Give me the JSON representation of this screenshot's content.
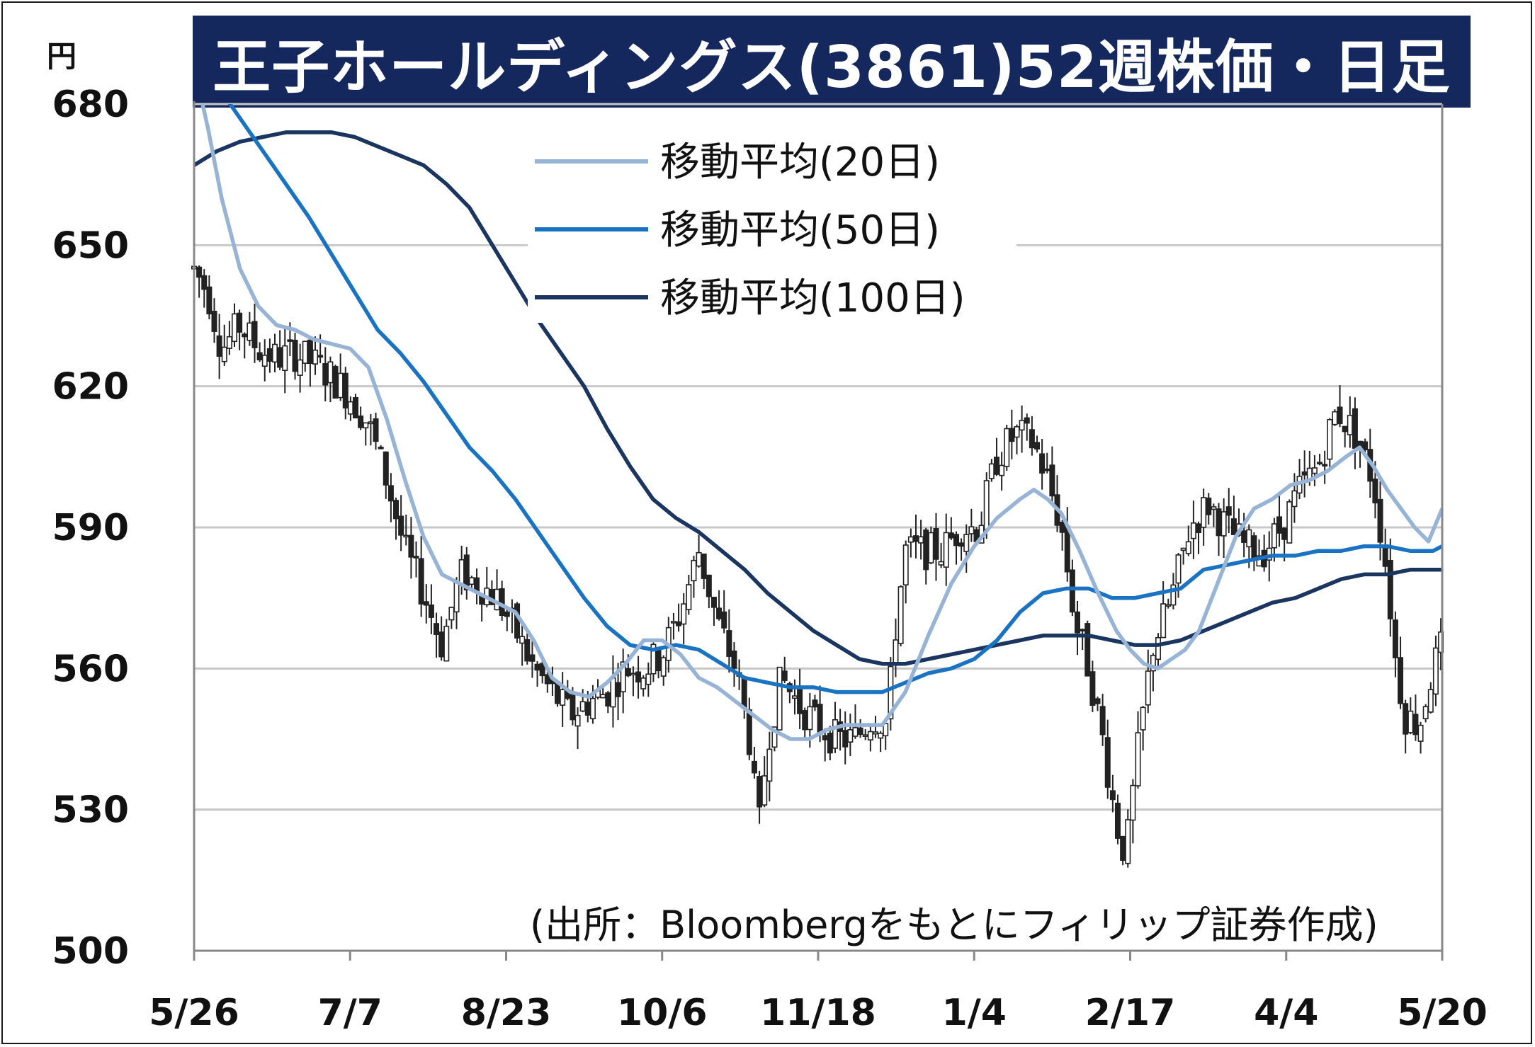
{
  "chart_data": {
    "type": "candlestick",
    "title": "王子ホールディングス(3861)52週株価・日足",
    "ylabel": "円",
    "source": "(出所：Bloombergをもとにフィリップ証券作成)",
    "ylim": [
      500,
      680
    ],
    "yticks": [
      "680",
      "650",
      "620",
      "590",
      "560",
      "530",
      "500"
    ],
    "grid": "horizontal",
    "legend_position": "top-center",
    "x_tick_labels": [
      "5/26",
      "7/7",
      "8/23",
      "10/6",
      "11/18",
      "1/4",
      "2/17",
      "4/4",
      "5/20"
    ],
    "colors": {
      "ma20": "#97b3d6",
      "ma50": "#1a73c2",
      "ma100": "#1a3560",
      "title_bg": "#15285e",
      "grid": "#c8c8c8"
    },
    "legend": [
      "移動平均(20日)",
      "移動平均(50日)",
      "移動平均(100日)"
    ],
    "price_path": [
      [
        0,
        645
      ],
      [
        6,
        640
      ],
      [
        12,
        628
      ],
      [
        20,
        633
      ],
      [
        28,
        628
      ],
      [
        36,
        626
      ],
      [
        44,
        627
      ],
      [
        52,
        625
      ],
      [
        60,
        622
      ],
      [
        68,
        618
      ],
      [
        76,
        612
      ],
      [
        84,
        600
      ],
      [
        92,
        585
      ],
      [
        100,
        576
      ],
      [
        108,
        565
      ],
      [
        116,
        580
      ],
      [
        124,
        578
      ],
      [
        132,
        575
      ],
      [
        140,
        568
      ],
      [
        148,
        560
      ],
      [
        156,
        555
      ],
      [
        164,
        550
      ],
      [
        172,
        553
      ],
      [
        180,
        555
      ],
      [
        188,
        560
      ],
      [
        196,
        560
      ],
      [
        204,
        563
      ],
      [
        212,
        572
      ],
      [
        220,
        585
      ],
      [
        228,
        570
      ],
      [
        236,
        560
      ],
      [
        242,
        545
      ],
      [
        246,
        525
      ],
      [
        250,
        545
      ],
      [
        256,
        558
      ],
      [
        264,
        552
      ],
      [
        272,
        548
      ],
      [
        280,
        545
      ],
      [
        288,
        545
      ],
      [
        296,
        550
      ],
      [
        302,
        548
      ],
      [
        306,
        570
      ],
      [
        310,
        585
      ],
      [
        318,
        585
      ],
      [
        326,
        585
      ],
      [
        334,
        590
      ],
      [
        342,
        590
      ],
      [
        350,
        605
      ],
      [
        358,
        610
      ],
      [
        366,
        608
      ],
      [
        372,
        600
      ],
      [
        378,
        590
      ],
      [
        384,
        570
      ],
      [
        390,
        560
      ],
      [
        396,
        545
      ],
      [
        402,
        527
      ],
      [
        406,
        520
      ],
      [
        412,
        545
      ],
      [
        418,
        565
      ],
      [
        426,
        575
      ],
      [
        434,
        590
      ],
      [
        442,
        595
      ],
      [
        450,
        590
      ],
      [
        458,
        586
      ],
      [
        466,
        585
      ],
      [
        474,
        590
      ],
      [
        482,
        598
      ],
      [
        490,
        603
      ],
      [
        498,
        615
      ],
      [
        506,
        610
      ],
      [
        514,
        600
      ],
      [
        520,
        580
      ],
      [
        524,
        560
      ],
      [
        528,
        550
      ],
      [
        534,
        548
      ],
      [
        540,
        560
      ],
      [
        544,
        565
      ]
    ],
    "ma20": [
      [
        0,
        688
      ],
      [
        6,
        675
      ],
      [
        12,
        660
      ],
      [
        20,
        645
      ],
      [
        28,
        637
      ],
      [
        36,
        633
      ],
      [
        44,
        632
      ],
      [
        52,
        630
      ],
      [
        60,
        629
      ],
      [
        68,
        628
      ],
      [
        76,
        624
      ],
      [
        84,
        613
      ],
      [
        92,
        600
      ],
      [
        100,
        588
      ],
      [
        108,
        580
      ],
      [
        116,
        578
      ],
      [
        124,
        576
      ],
      [
        132,
        574
      ],
      [
        140,
        572
      ],
      [
        148,
        566
      ],
      [
        156,
        558
      ],
      [
        164,
        555
      ],
      [
        172,
        554
      ],
      [
        180,
        557
      ],
      [
        188,
        561
      ],
      [
        196,
        566
      ],
      [
        204,
        566
      ],
      [
        212,
        563
      ],
      [
        220,
        558
      ],
      [
        228,
        556
      ],
      [
        236,
        553
      ],
      [
        244,
        550
      ],
      [
        252,
        547
      ],
      [
        260,
        545
      ],
      [
        268,
        545
      ],
      [
        276,
        547
      ],
      [
        284,
        548
      ],
      [
        292,
        548
      ],
      [
        300,
        548
      ],
      [
        310,
        555
      ],
      [
        320,
        567
      ],
      [
        330,
        578
      ],
      [
        340,
        586
      ],
      [
        350,
        592
      ],
      [
        360,
        596
      ],
      [
        366,
        598
      ],
      [
        372,
        596
      ],
      [
        378,
        593
      ],
      [
        386,
        585
      ],
      [
        394,
        576
      ],
      [
        402,
        568
      ],
      [
        408,
        564
      ],
      [
        414,
        561
      ],
      [
        420,
        560
      ],
      [
        426,
        562
      ],
      [
        432,
        564
      ],
      [
        438,
        568
      ],
      [
        446,
        578
      ],
      [
        454,
        588
      ],
      [
        462,
        594
      ],
      [
        470,
        596
      ],
      [
        478,
        599
      ],
      [
        486,
        600
      ],
      [
        494,
        602
      ],
      [
        502,
        605
      ],
      [
        508,
        607
      ],
      [
        514,
        603
      ],
      [
        520,
        598
      ],
      [
        526,
        594
      ],
      [
        532,
        590
      ],
      [
        538,
        587
      ],
      [
        544,
        594
      ]
    ],
    "ma50": [
      [
        0,
        688
      ],
      [
        10,
        684
      ],
      [
        20,
        677
      ],
      [
        30,
        670
      ],
      [
        40,
        663
      ],
      [
        50,
        656
      ],
      [
        60,
        648
      ],
      [
        70,
        640
      ],
      [
        80,
        632
      ],
      [
        90,
        627
      ],
      [
        100,
        621
      ],
      [
        110,
        614
      ],
      [
        120,
        607
      ],
      [
        130,
        602
      ],
      [
        140,
        596
      ],
      [
        150,
        589
      ],
      [
        160,
        582
      ],
      [
        170,
        575
      ],
      [
        180,
        569
      ],
      [
        190,
        565
      ],
      [
        200,
        564
      ],
      [
        210,
        565
      ],
      [
        220,
        564
      ],
      [
        230,
        561
      ],
      [
        240,
        558
      ],
      [
        250,
        557
      ],
      [
        260,
        556
      ],
      [
        270,
        556
      ],
      [
        280,
        555
      ],
      [
        290,
        555
      ],
      [
        300,
        555
      ],
      [
        310,
        557
      ],
      [
        320,
        559
      ],
      [
        330,
        560
      ],
      [
        340,
        562
      ],
      [
        350,
        566
      ],
      [
        360,
        572
      ],
      [
        370,
        576
      ],
      [
        380,
        577
      ],
      [
        390,
        577
      ],
      [
        400,
        575
      ],
      [
        410,
        575
      ],
      [
        420,
        576
      ],
      [
        430,
        577
      ],
      [
        440,
        581
      ],
      [
        450,
        582
      ],
      [
        460,
        583
      ],
      [
        470,
        584
      ],
      [
        480,
        584
      ],
      [
        490,
        585
      ],
      [
        500,
        585
      ],
      [
        510,
        586
      ],
      [
        520,
        586
      ],
      [
        530,
        585
      ],
      [
        540,
        585
      ],
      [
        544,
        586
      ]
    ],
    "ma100": [
      [
        0,
        667
      ],
      [
        10,
        670
      ],
      [
        20,
        672
      ],
      [
        30,
        673
      ],
      [
        40,
        674
      ],
      [
        50,
        674
      ],
      [
        60,
        674
      ],
      [
        70,
        673
      ],
      [
        80,
        671
      ],
      [
        90,
        669
      ],
      [
        100,
        667
      ],
      [
        110,
        663
      ],
      [
        120,
        658
      ],
      [
        130,
        650
      ],
      [
        140,
        642
      ],
      [
        150,
        634
      ],
      [
        160,
        627
      ],
      [
        170,
        620
      ],
      [
        180,
        611
      ],
      [
        190,
        603
      ],
      [
        200,
        596
      ],
      [
        210,
        592
      ],
      [
        220,
        589
      ],
      [
        230,
        585
      ],
      [
        240,
        581
      ],
      [
        250,
        576
      ],
      [
        260,
        572
      ],
      [
        270,
        568
      ],
      [
        280,
        565
      ],
      [
        290,
        562
      ],
      [
        300,
        561
      ],
      [
        310,
        561
      ],
      [
        320,
        562
      ],
      [
        330,
        563
      ],
      [
        340,
        564
      ],
      [
        350,
        565
      ],
      [
        360,
        566
      ],
      [
        370,
        567
      ],
      [
        380,
        567
      ],
      [
        390,
        567
      ],
      [
        400,
        566
      ],
      [
        410,
        565
      ],
      [
        420,
        565
      ],
      [
        430,
        566
      ],
      [
        440,
        568
      ],
      [
        450,
        570
      ],
      [
        460,
        572
      ],
      [
        470,
        574
      ],
      [
        480,
        575
      ],
      [
        490,
        577
      ],
      [
        500,
        579
      ],
      [
        510,
        580
      ],
      [
        520,
        580
      ],
      [
        530,
        581
      ],
      [
        540,
        581
      ],
      [
        544,
        581
      ]
    ]
  }
}
